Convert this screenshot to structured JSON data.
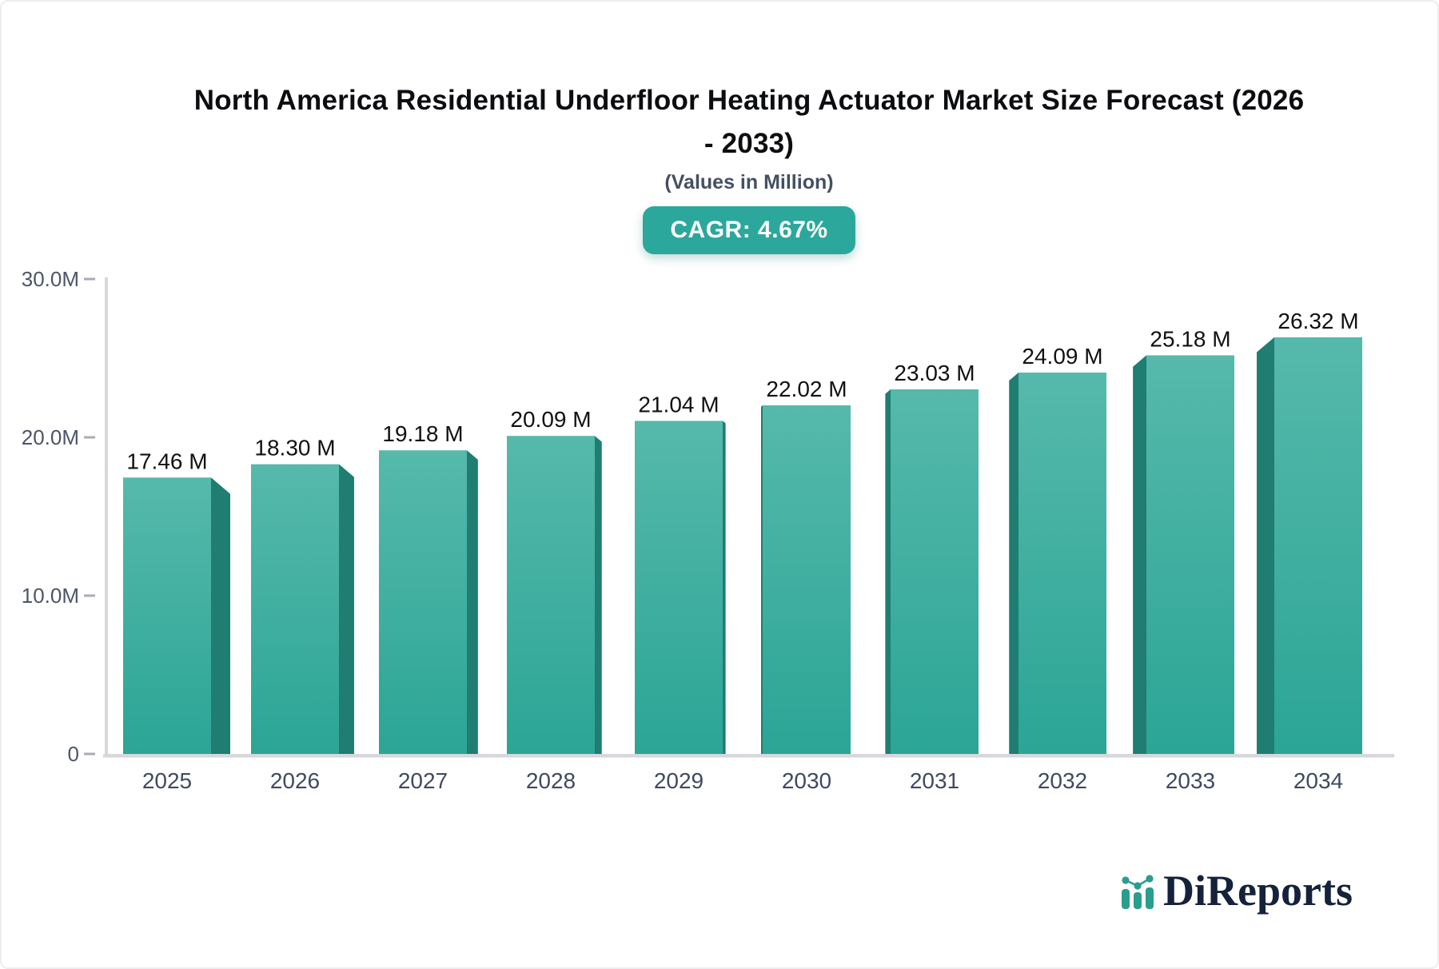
{
  "header": {
    "title_line1": "North America Residential Underfloor Heating Actuator Market Size Forecast (2026",
    "title_line2": "- 2033)",
    "subtitle": "(Values in Million)",
    "cagr_badge": "CAGR: 4.67%"
  },
  "branding": {
    "logo_text": "DiReports",
    "logo_icon": "mini-bar-line-chart-icon"
  },
  "chart_data": {
    "type": "bar",
    "title": "North America Residential Underfloor Heating Actuator Market Size Forecast (2026 - 2033)",
    "subtitle": "(Values in Million)",
    "cagr_percent": 4.67,
    "unit": "Million",
    "categories": [
      "2025",
      "2026",
      "2027",
      "2028",
      "2029",
      "2030",
      "2031",
      "2032",
      "2033",
      "2034"
    ],
    "values": [
      17.46,
      18.3,
      19.18,
      20.09,
      21.04,
      22.02,
      23.03,
      24.09,
      25.18,
      26.32
    ],
    "value_labels": [
      "17.46 M",
      "18.30 M",
      "19.18 M",
      "20.09 M",
      "21.04 M",
      "22.02 M",
      "23.03 M",
      "24.09 M",
      "25.18 M",
      "26.32 M"
    ],
    "xlabel": "",
    "ylabel": "",
    "ylim": [
      0,
      30
    ],
    "yticks": [
      {
        "label": "30.0M",
        "value": 30
      },
      {
        "label": "20.0M",
        "value": 20
      },
      {
        "label": "10.0M",
        "value": 10
      },
      {
        "label": "0",
        "value": 0
      }
    ],
    "grid": false,
    "legend": "none",
    "bar_style": "3d-perspective",
    "colors": {
      "bar_front_top": "#56b9ab",
      "bar_front_bottom": "#2ba596",
      "bar_side": "#1f7d71",
      "badge_background": "#2ba89b",
      "badge_text": "#ffffff",
      "axis_line": "#d6d8dd",
      "tick_dash": "#a7acb6",
      "ytick_label": "#4c5568",
      "category_label": "#3e4a5f",
      "value_label": "#101113",
      "title_text": "#0c0d10",
      "subtitle_text": "#454f63",
      "logo_navy": "#15223b",
      "logo_teal": "#2a9d8f"
    }
  }
}
